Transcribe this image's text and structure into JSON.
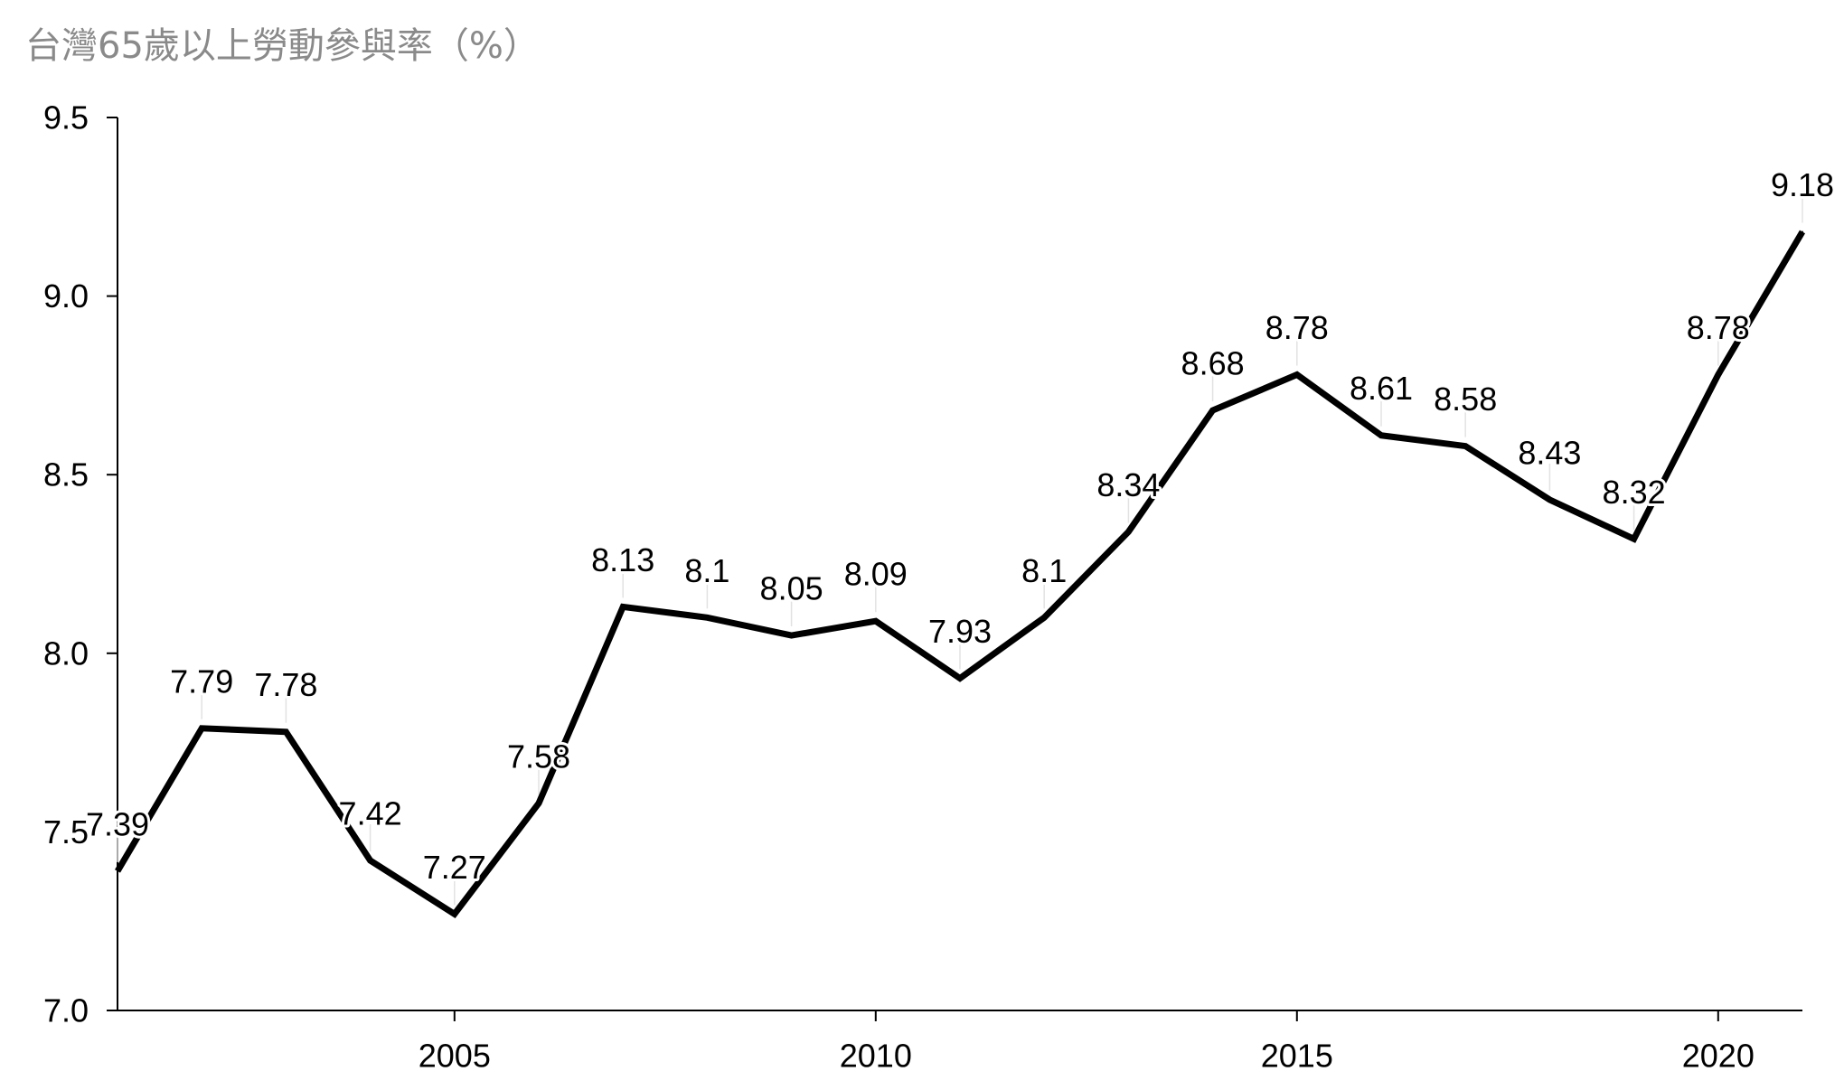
{
  "chart_data": {
    "type": "line",
    "title": "台灣65歲以上勞動參與率（%）",
    "xlabel": "",
    "ylabel": "",
    "x": [
      2001,
      2002,
      2003,
      2004,
      2005,
      2006,
      2007,
      2008,
      2009,
      2010,
      2011,
      2012,
      2013,
      2014,
      2015,
      2016,
      2017,
      2018,
      2019,
      2020,
      2021
    ],
    "series": [
      {
        "values": [
          7.39,
          7.79,
          7.78,
          7.42,
          7.27,
          7.58,
          8.13,
          8.1,
          8.05,
          8.09,
          7.93,
          8.1,
          8.34,
          8.68,
          8.78,
          8.61,
          8.58,
          8.43,
          8.32,
          8.78,
          9.18
        ],
        "labels": [
          "7.39",
          "7.79",
          "7.78",
          "7.42",
          "7.27",
          "7.58",
          "8.13",
          "8.1",
          "8.05",
          "8.09",
          "7.93",
          "8.1",
          "8.34",
          "8.68",
          "8.78",
          "8.61",
          "8.58",
          "8.43",
          "8.32",
          "8.78",
          "9.18"
        ],
        "color": "#000000"
      }
    ],
    "xlim": [
      2001,
      2021
    ],
    "ylim": [
      7.0,
      9.5
    ],
    "x_ticks": [
      2005,
      2010,
      2015,
      2020
    ],
    "x_tick_labels": [
      "2005",
      "2010",
      "2015",
      "2020"
    ],
    "y_ticks": [
      7.0,
      7.5,
      8.0,
      8.5,
      9.0,
      9.5
    ],
    "y_tick_labels": [
      "7.0",
      "7.5",
      "8.0",
      "8.5",
      "9.0",
      "9.5"
    ],
    "grid": false,
    "legend": "none",
    "data_labels": true
  }
}
